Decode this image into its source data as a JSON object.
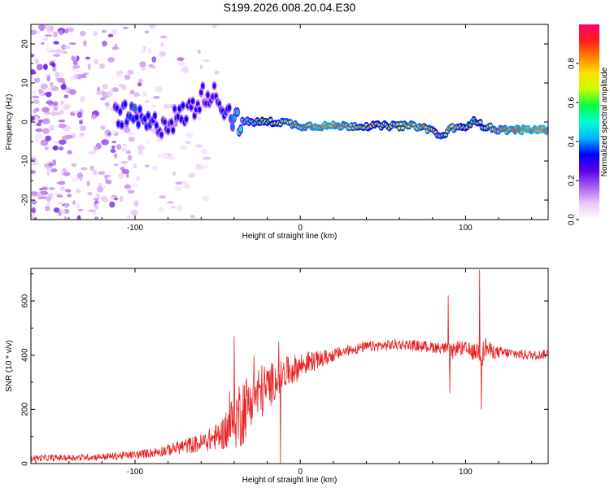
{
  "title": "S199.2026.008.20.04.E30",
  "chart_data": [
    {
      "type": "heatmap",
      "name": "spectrogram",
      "xlabel": "Height of straight line (km)",
      "ylabel": "Frequency (Hz)",
      "xlim": [
        -163,
        150
      ],
      "ylim": [
        -25,
        25
      ],
      "xticks": [
        -100,
        0,
        100
      ],
      "yticks": [
        -20,
        -10,
        0,
        10,
        20
      ],
      "xtick_labels": [
        "-100",
        "0",
        "100"
      ],
      "ytick_labels": [
        "-20",
        "-10",
        "0",
        "10",
        "20"
      ],
      "colorbar": {
        "label": "Normalized spectral amplitude",
        "range": [
          0.0,
          1.0
        ],
        "ticks": [
          0.0,
          0.2,
          0.4,
          0.6,
          0.8
        ],
        "tick_labels": [
          "0.0",
          "0.2",
          "0.4",
          "0.6",
          "0.8"
        ],
        "colors": [
          "#ffffff",
          "#e9c8f5",
          "#a860f0",
          "#5a00e8",
          "#0000ff",
          "#00b4ff",
          "#00ffd0",
          "#00ff40",
          "#c8ff00",
          "#ffe000",
          "#ff8000",
          "#ff1c1c",
          "#ff0070"
        ]
      },
      "ridge": {
        "x": [
          -110,
          -100,
          -90,
          -80,
          -70,
          -62,
          -56,
          -50,
          -44,
          -38,
          -30,
          -20,
          -10,
          0,
          10,
          20,
          30,
          40,
          50,
          60,
          70,
          80,
          85,
          90,
          95,
          100,
          105,
          110,
          120,
          130,
          140,
          150
        ],
        "freq": [
          2,
          1,
          -1,
          0,
          2,
          5,
          8,
          6,
          3,
          0,
          0,
          0,
          0,
          -1,
          -1,
          -1,
          -1,
          -1,
          -1,
          -1,
          -1,
          -2,
          -4,
          -2,
          -1,
          -2,
          1,
          -1,
          -2,
          -2,
          -2,
          -2
        ],
        "amplitude": [
          0.35,
          0.4,
          0.35,
          0.3,
          0.35,
          0.3,
          0.3,
          0.3,
          0.35,
          0.5,
          0.55,
          0.7,
          0.8,
          0.85,
          0.9,
          0.9,
          0.85,
          0.75,
          0.75,
          0.8,
          0.85,
          0.8,
          0.5,
          0.85,
          0.8,
          0.7,
          0.6,
          0.75,
          0.85,
          0.9,
          0.95,
          0.95
        ]
      }
    },
    {
      "type": "line",
      "name": "snr",
      "xlabel": "Height of straight line (km)",
      "ylabel": "SNR (10 * v/v)",
      "xlim": [
        -163,
        150
      ],
      "ylim": [
        0,
        720
      ],
      "xticks": [
        -100,
        0,
        100
      ],
      "yticks": [
        0,
        200,
        400,
        600
      ],
      "xtick_labels": [
        "-100",
        "0",
        "100"
      ],
      "ytick_labels": [
        "0",
        "200",
        "400",
        "600"
      ],
      "series": [
        {
          "name": "SNR",
          "color": "#e82020",
          "x": [
            -163,
            -140,
            -120,
            -100,
            -90,
            -80,
            -70,
            -60,
            -50,
            -45,
            -40,
            -35,
            -30,
            -25,
            -20,
            -15,
            -10,
            -5,
            0,
            5,
            10,
            15,
            20,
            25,
            30,
            40,
            50,
            60,
            70,
            80,
            88,
            92,
            95,
            100,
            105,
            108,
            110,
            112,
            115,
            120,
            130,
            140,
            150
          ],
          "y": [
            20,
            22,
            25,
            32,
            40,
            50,
            65,
            75,
            100,
            120,
            160,
            200,
            230,
            260,
            280,
            310,
            330,
            345,
            360,
            375,
            380,
            390,
            400,
            410,
            420,
            430,
            435,
            440,
            435,
            430,
            425,
            410,
            430,
            420,
            410,
            420,
            400,
            430,
            415,
            410,
            405,
            400,
            405
          ],
          "noise_amplitude": [
            12,
            12,
            13,
            15,
            18,
            22,
            28,
            35,
            50,
            70,
            110,
            140,
            90,
            110,
            90,
            70,
            60,
            55,
            50,
            40,
            35,
            30,
            25,
            22,
            20,
            20,
            20,
            20,
            20,
            22,
            22,
            30,
            25,
            30,
            30,
            40,
            45,
            40,
            30,
            22,
            20,
            18,
            18
          ],
          "spikes": [
            {
              "x": 89.5,
              "y": 620
            },
            {
              "x": 90.5,
              "y": 260
            },
            {
              "x": 108.5,
              "y": 715
            },
            {
              "x": 109.5,
              "y": 200
            },
            {
              "x": -40,
              "y": 470
            },
            {
              "x": -28,
              "y": 400
            },
            {
              "x": -13,
              "y": 450
            },
            {
              "x": -12,
              "y": 0
            }
          ]
        }
      ]
    }
  ]
}
